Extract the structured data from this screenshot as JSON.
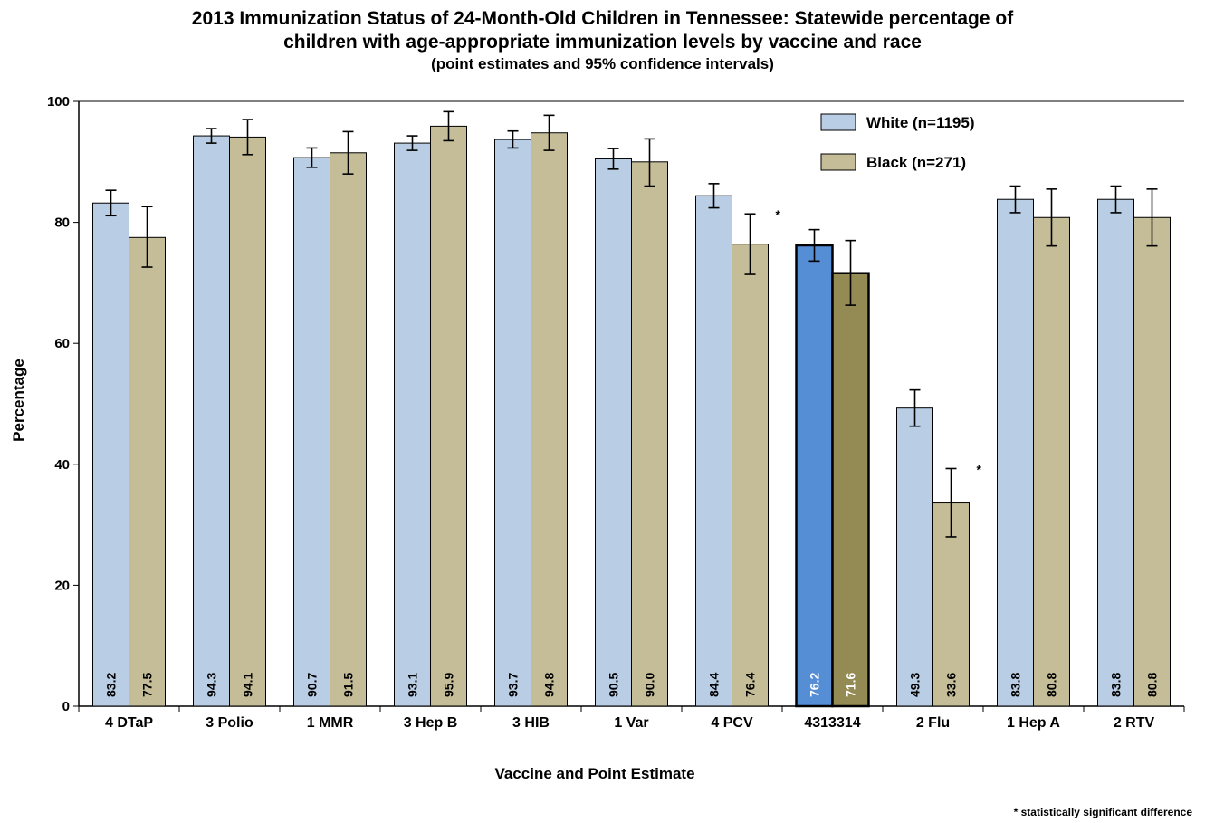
{
  "title_line1": "2013 Immunization  Status of 24-Month-Old Children in Tennessee: Statewide percentage of",
  "title_line2": "children with age-appropriate immunization  levels by vaccine and race",
  "subtitle": "(point estimates and 95% confidence intervals)",
  "footnote": "*  statistically significant difference",
  "chart_data": {
    "type": "bar",
    "xlabel": "Vaccine and Point Estimate",
    "ylabel": "Percentage",
    "ylim": [
      0,
      100
    ],
    "yticks": [
      0,
      20,
      40,
      60,
      80,
      100
    ],
    "grid": false,
    "legend_position": "top-right",
    "categories": [
      "4 DTaP",
      "3 Polio",
      "1 MMR",
      "3 Hep  B",
      "3 HIB",
      "1 Var",
      "4 PCV",
      "4313314",
      "2 Flu",
      "1 Hep  A",
      "2 RTV"
    ],
    "highlight_category_index": 7,
    "significance_marker": "*",
    "significant_categories": [
      6,
      8
    ],
    "series": [
      {
        "name": "White (n=1195)",
        "color": "#b9cde5",
        "highlight_color": "#558ed5",
        "values": [
          83.2,
          94.3,
          90.7,
          93.1,
          93.7,
          90.5,
          84.4,
          76.2,
          49.3,
          83.8,
          83.8
        ],
        "labels": [
          "83.2",
          "94.3",
          "90.7",
          "93.1",
          "93.7",
          "90.5",
          "84.4",
          "76.2",
          "49.3",
          "83.8",
          "83.8"
        ],
        "ci_low": [
          81.1,
          93.1,
          89.1,
          91.9,
          92.3,
          88.8,
          82.4,
          73.6,
          46.3,
          81.6,
          81.6
        ],
        "ci_high": [
          85.3,
          95.5,
          92.3,
          94.3,
          95.1,
          92.2,
          86.4,
          78.8,
          52.3,
          86.0,
          86.0
        ]
      },
      {
        "name": "Black (n=271)",
        "color": "#c4bd97",
        "highlight_color": "#948a54",
        "values": [
          77.5,
          94.1,
          91.5,
          95.9,
          94.8,
          90.0,
          76.4,
          71.6,
          33.6,
          80.8,
          80.8
        ],
        "labels": [
          "77.5",
          "94.1",
          "91.5",
          "95.9",
          "94.8",
          "90.0",
          "76.4",
          "71.6",
          "33.6",
          "80.8",
          "80.8"
        ],
        "ci_low": [
          72.6,
          91.2,
          88.0,
          93.5,
          91.9,
          86.0,
          71.4,
          66.3,
          28.0,
          76.1,
          76.1
        ],
        "ci_high": [
          82.6,
          97.0,
          95.0,
          98.3,
          97.7,
          93.8,
          81.4,
          77.0,
          39.3,
          85.5,
          85.5
        ]
      }
    ]
  }
}
